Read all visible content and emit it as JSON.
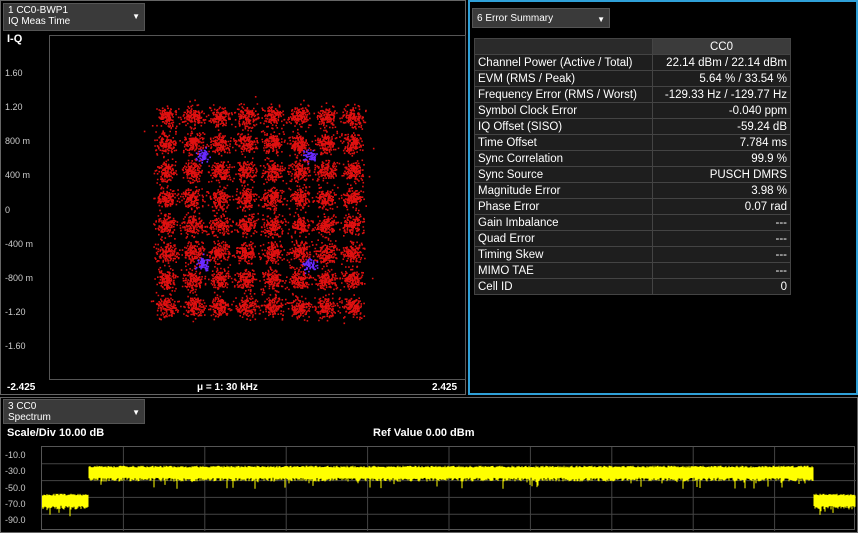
{
  "panels": {
    "iq": {
      "tab_line1": "1 CC0-BWP1",
      "tab_line2": "IQ Meas Time",
      "plot_label": "I-Q",
      "y_ticks": [
        "1.60",
        "1.20",
        "800 m",
        "400 m",
        "0",
        "-400 m",
        "-800 m",
        "-1.20",
        "-1.60"
      ],
      "x_min": "-2.425",
      "x_max": "2.425",
      "numerology": "μ = 1: 30 kHz",
      "point_color": "#e01010",
      "highlight_color": "#6a2aff"
    },
    "error_summary": {
      "tab_label": "6 Error Summary",
      "column_header": "CC0",
      "rows": [
        {
          "label": "Channel Power (Active / Total)",
          "value": "22.14 dBm / 22.14 dBm"
        },
        {
          "label": "EVM (RMS / Peak)",
          "value": "5.64 % / 33.54 %"
        },
        {
          "label": "Frequency Error (RMS / Worst)",
          "value": "-129.33 Hz / -129.77 Hz"
        },
        {
          "label": "Symbol Clock Error",
          "value": "-0.040 ppm"
        },
        {
          "label": "IQ Offset (SISO)",
          "value": "-59.24 dB"
        },
        {
          "label": "Time Offset",
          "value": "7.784 ms"
        },
        {
          "label": "Sync Correlation",
          "value": "99.9 %"
        },
        {
          "label": "Sync Source",
          "value": "PUSCH DMRS"
        },
        {
          "label": "Magnitude Error",
          "value": "3.98 %"
        },
        {
          "label": "Phase Error",
          "value": "0.07 rad"
        },
        {
          "label": "Gain Imbalance",
          "value": "---"
        },
        {
          "label": "Quad Error",
          "value": "---"
        },
        {
          "label": "Timing Skew",
          "value": "---"
        },
        {
          "label": "MIMO TAE",
          "value": "---"
        },
        {
          "label": "Cell ID",
          "value": "0"
        }
      ],
      "border_color": "#2fa0d8"
    },
    "spectrum": {
      "tab_line1": "3 CC0",
      "tab_line2": "Spectrum",
      "scale": "Scale/Div 10.00 dB",
      "ref_value": "Ref Value 0.00 dBm",
      "y_ticks": [
        "-10.0",
        "-30.0",
        "-50.0",
        "-70.0",
        "-90.0"
      ],
      "trace_color": "#ffff00",
      "in_band_level_db": -30,
      "out_band_level_db": -60
    }
  }
}
